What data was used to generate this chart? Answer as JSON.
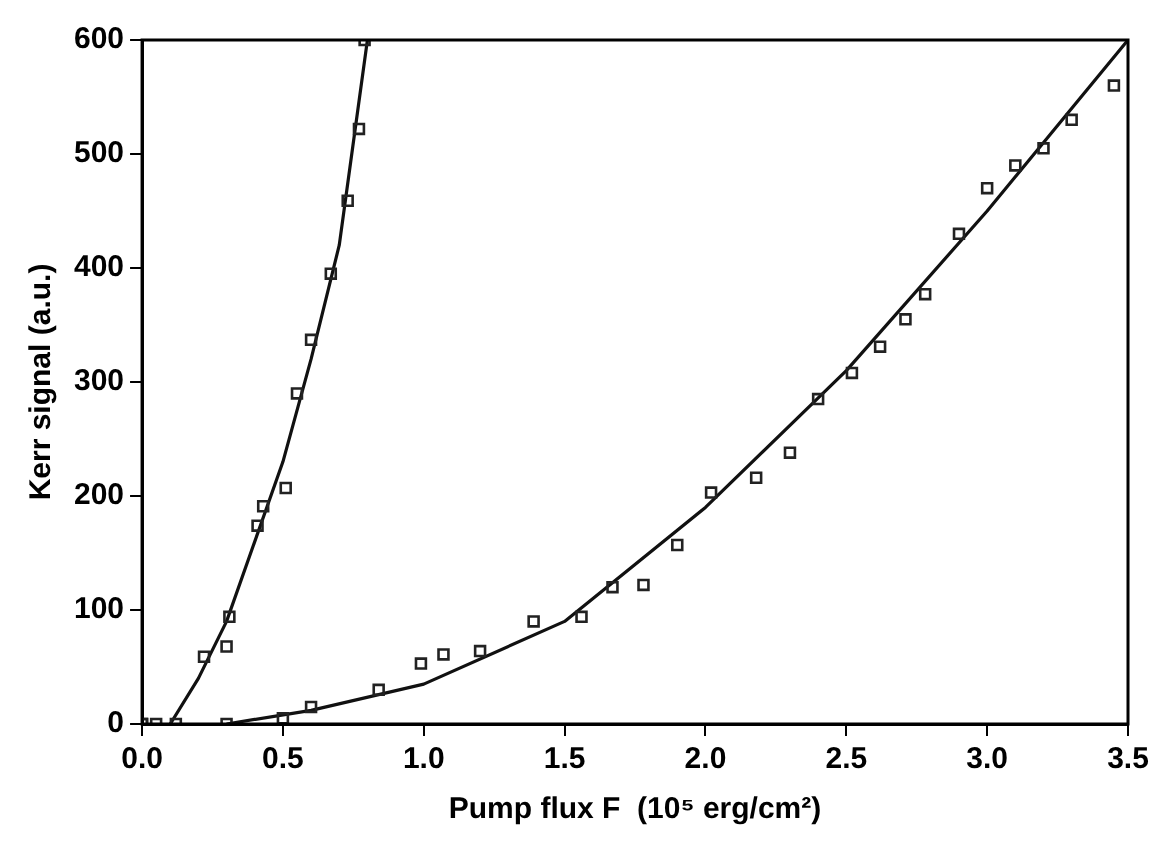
{
  "chart_data": {
    "type": "scatter",
    "xlabel": "Pump flux F  (10⁵ erg/cm²)",
    "ylabel": "Kerr signal (a.u.)",
    "xlim": [
      0,
      3.5
    ],
    "ylim": [
      0,
      600
    ],
    "xticks": [
      {
        "value": 0,
        "label": "0.0"
      },
      {
        "value": 0.5,
        "label": "0.5"
      },
      {
        "value": 1,
        "label": "1.0"
      },
      {
        "value": 1.5,
        "label": "1.5"
      },
      {
        "value": 2,
        "label": "2.0"
      },
      {
        "value": 2.5,
        "label": "2.5"
      },
      {
        "value": 3,
        "label": "3.0"
      },
      {
        "value": 3.5,
        "label": "3.5"
      }
    ],
    "yticks": [
      0,
      100,
      200,
      300,
      400,
      500,
      600
    ],
    "grid": false,
    "legend": false,
    "marker": "square",
    "series": [
      {
        "type": "scatter",
        "color": "#222222",
        "x": [
          0,
          0.05,
          0.12,
          0.22,
          0.3,
          0.31,
          0.41,
          0.43,
          0.51,
          0.55,
          0.6,
          0.67,
          0.73,
          0.77,
          0.79
        ],
        "values": [
          0,
          0,
          0,
          59,
          68,
          94,
          174,
          191,
          207,
          290,
          337,
          395,
          459,
          522,
          600
        ]
      },
      {
        "type": "scatter",
        "color": "#222222",
        "x": [
          0,
          0.3,
          0.5,
          0.6,
          0.84,
          0.99,
          1.07,
          1.2,
          1.39,
          1.56,
          1.67,
          1.78,
          1.9,
          2.02,
          2.18,
          2.3,
          2.4,
          2.52,
          2.62,
          2.71,
          2.78,
          2.9,
          3.0,
          3.1,
          3.2,
          3.3,
          3.45
        ],
        "values": [
          0,
          0,
          5,
          15,
          30,
          53,
          61,
          64,
          90,
          94,
          120,
          122,
          157,
          203,
          216,
          238,
          285,
          308,
          331,
          355,
          377,
          430,
          470,
          490,
          505,
          530,
          560
        ]
      },
      {
        "type": "line",
        "color": "#111111",
        "marker": "none",
        "x": [
          0.1,
          0.2,
          0.3,
          0.4,
          0.5,
          0.6,
          0.7,
          0.8
        ],
        "values": [
          0,
          40,
          90,
          160,
          230,
          320,
          420,
          600
        ]
      },
      {
        "type": "line",
        "color": "#111111",
        "marker": "none",
        "x": [
          0.3,
          0.6,
          1.0,
          1.5,
          2.0,
          2.5,
          3.0,
          3.5
        ],
        "values": [
          0,
          12,
          35,
          90,
          190,
          310,
          450,
          600
        ]
      }
    ]
  }
}
